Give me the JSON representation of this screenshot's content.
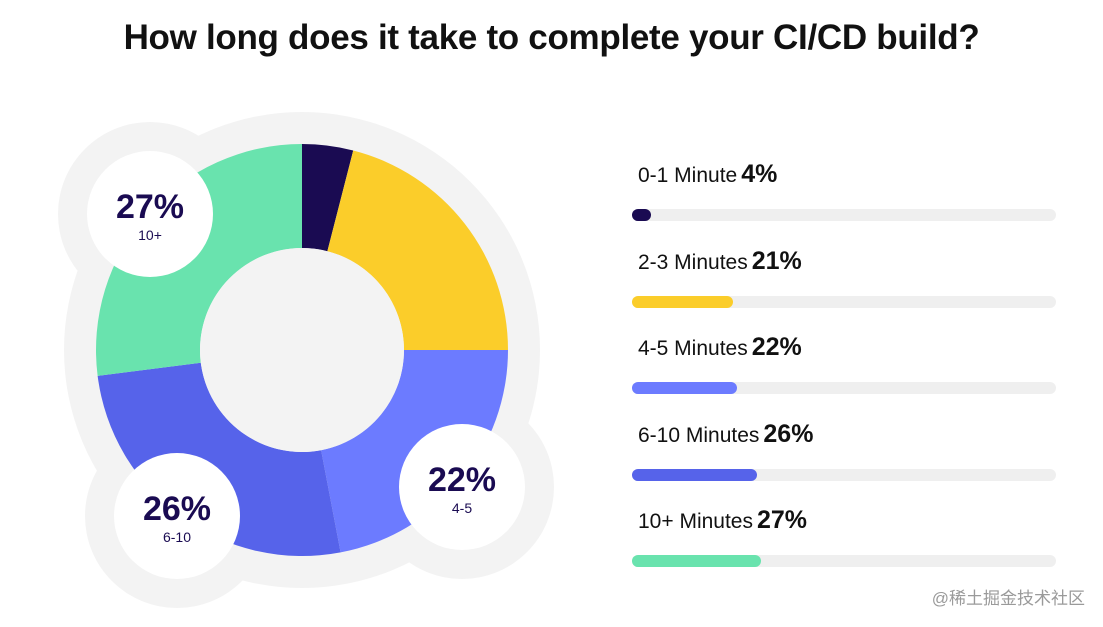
{
  "title": "How long does it take to complete your CI/CD build?",
  "watermark": "@稀土掘金技术社区",
  "chart_data": [
    {
      "type": "pie",
      "variant": "donut",
      "categories": [
        "0-1",
        "2-3",
        "4-5",
        "6-10",
        "10+"
      ],
      "values": [
        4,
        21,
        22,
        26,
        27
      ],
      "unit": "%",
      "colors": [
        "#1a0b52",
        "#fbcd2a",
        "#6c7bff",
        "#5663ea",
        "#69e3ae"
      ],
      "callouts": [
        {
          "value_label": "27%",
          "category_label": "10+"
        },
        {
          "value_label": "22%",
          "category_label": "4-5"
        },
        {
          "value_label": "26%",
          "category_label": "6-10"
        }
      ]
    },
    {
      "type": "bar",
      "orientation": "horizontal",
      "xlim": [
        0,
        100
      ],
      "categories": [
        "0-1 Minute",
        "2-3 Minutes",
        "4-5 Minutes",
        "6-10 Minutes",
        "10+ Minutes"
      ],
      "values": [
        4,
        21,
        22,
        26,
        27
      ],
      "value_labels": [
        "4%",
        "21%",
        "22%",
        "26%",
        "27%"
      ],
      "colors": [
        "#1a0b52",
        "#fbcd2a",
        "#6c7bff",
        "#5663ea",
        "#69e3ae"
      ]
    }
  ]
}
